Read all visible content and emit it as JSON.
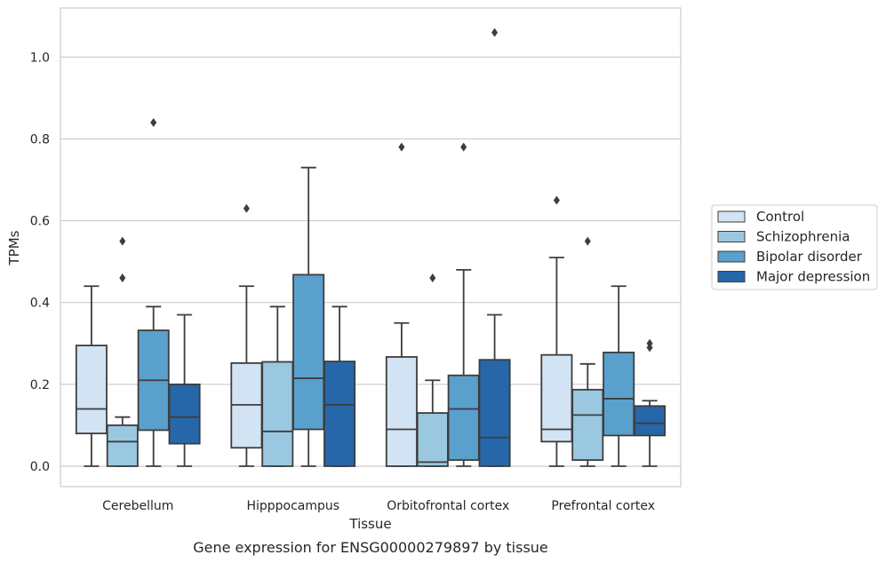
{
  "caption": "Gene expression for ENSG00000279897 by tissue",
  "chart_data": {
    "type": "box",
    "xlabel": "Tissue",
    "ylabel": "TPMs",
    "ylim": [
      -0.05,
      1.12
    ],
    "yticks": [
      0.0,
      0.2,
      0.4,
      0.6,
      0.8,
      1.0
    ],
    "ytick_labels": [
      "0.0",
      "0.2",
      "0.4",
      "0.6",
      "0.8",
      "1.0"
    ],
    "grid": "horizontal",
    "legend_position": "right",
    "categories": [
      "Cerebellum",
      "Hipppocampus",
      "Orbitofrontal cortex",
      "Prefrontal cortex"
    ],
    "series": [
      {
        "name": "Control",
        "color": "#d2e3f3",
        "boxes": [
          {
            "whislo": 0.0,
            "q1": 0.08,
            "med": 0.14,
            "q3": 0.295,
            "whishi": 0.44,
            "fliers": []
          },
          {
            "whislo": 0.0,
            "q1": 0.045,
            "med": 0.15,
            "q3": 0.252,
            "whishi": 0.44,
            "fliers": [
              0.63
            ]
          },
          {
            "whislo": 0.0,
            "q1": 0.0,
            "med": 0.09,
            "q3": 0.267,
            "whishi": 0.35,
            "fliers": [
              0.78
            ]
          },
          {
            "whislo": 0.0,
            "q1": 0.06,
            "med": 0.09,
            "q3": 0.272,
            "whishi": 0.51,
            "fliers": [
              0.65
            ]
          }
        ]
      },
      {
        "name": "Schizophrenia",
        "color": "#9ac8e0",
        "boxes": [
          {
            "whislo": 0.0,
            "q1": 0.0,
            "med": 0.06,
            "q3": 0.1,
            "whishi": 0.12,
            "fliers": [
              0.46,
              0.55
            ]
          },
          {
            "whislo": 0.0,
            "q1": 0.0,
            "med": 0.085,
            "q3": 0.255,
            "whishi": 0.39,
            "fliers": []
          },
          {
            "whislo": 0.0,
            "q1": 0.0,
            "med": 0.01,
            "q3": 0.13,
            "whishi": 0.21,
            "fliers": [
              0.46
            ]
          },
          {
            "whislo": 0.0,
            "q1": 0.015,
            "med": 0.125,
            "q3": 0.187,
            "whishi": 0.25,
            "fliers": [
              0.55
            ]
          }
        ]
      },
      {
        "name": "Bipolar disorder",
        "color": "#5aa0cd",
        "boxes": [
          {
            "whislo": 0.0,
            "q1": 0.088,
            "med": 0.21,
            "q3": 0.332,
            "whishi": 0.39,
            "fliers": [
              0.84
            ]
          },
          {
            "whislo": 0.0,
            "q1": 0.09,
            "med": 0.215,
            "q3": 0.468,
            "whishi": 0.73,
            "fliers": []
          },
          {
            "whislo": 0.0,
            "q1": 0.015,
            "med": 0.14,
            "q3": 0.222,
            "whishi": 0.48,
            "fliers": [
              0.78
            ]
          },
          {
            "whislo": 0.0,
            "q1": 0.075,
            "med": 0.165,
            "q3": 0.278,
            "whishi": 0.44,
            "fliers": []
          }
        ]
      },
      {
        "name": "Major depression",
        "color": "#2667a9",
        "boxes": [
          {
            "whislo": 0.0,
            "q1": 0.055,
            "med": 0.12,
            "q3": 0.2,
            "whishi": 0.37,
            "fliers": []
          },
          {
            "whislo": 0.0,
            "q1": 0.0,
            "med": 0.15,
            "q3": 0.256,
            "whishi": 0.39,
            "fliers": []
          },
          {
            "whislo": 0.0,
            "q1": 0.0,
            "med": 0.07,
            "q3": 0.26,
            "whishi": 0.37,
            "fliers": [
              1.06
            ]
          },
          {
            "whislo": 0.0,
            "q1": 0.075,
            "med": 0.105,
            "q3": 0.147,
            "whishi": 0.16,
            "fliers": [
              0.29,
              0.3
            ]
          }
        ]
      }
    ]
  }
}
